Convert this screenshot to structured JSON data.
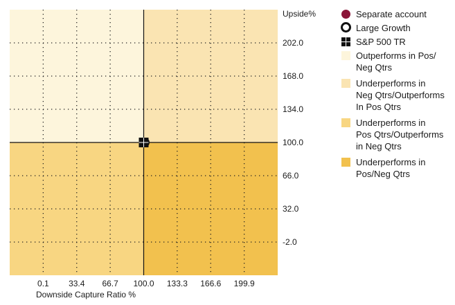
{
  "chart_data": {
    "type": "scatter",
    "title": "",
    "xlabel": "Downside Capture Ratio %",
    "ylabel": "Upside%",
    "x_ticks": [
      "0.1",
      "33.4",
      "66.7",
      "100.0",
      "133.3",
      "166.6",
      "199.9"
    ],
    "y_ticks": [
      "202.0",
      "168.0",
      "134.0",
      "100.0",
      "66.0",
      "32.0",
      "-2.0"
    ],
    "xlim": [
      -33.2,
      233.2
    ],
    "ylim": [
      -36,
      236
    ],
    "grid": true,
    "legend_position": "right",
    "reference_lines": {
      "x": 100.0,
      "y": 100.0
    },
    "quadrants": [
      {
        "name": "Outperforms in Pos/\nNeg Qtrs",
        "region": "top-left",
        "color": "#fdf5dc"
      },
      {
        "name": "Underperforms in\nNeg Qtrs/Outperforms\nIn Pos Qtrs",
        "region": "top-right",
        "color": "#fae4b2"
      },
      {
        "name": "Underperforms in\nPos Qtrs/Outperforms\nin Neg Qtrs",
        "region": "bottom-left",
        "color": "#f8d682"
      },
      {
        "name": "Underperforms in\nPos/Neg Qtrs",
        "region": "bottom-right",
        "color": "#f2c14e"
      }
    ],
    "series": [
      {
        "name": "Separate account",
        "marker": "dot",
        "color": "#8a1538",
        "points": []
      },
      {
        "name": "Large Growth",
        "marker": "ring",
        "color": "#111111",
        "points": [
          {
            "x": 101.0,
            "y": 100.0
          }
        ]
      },
      {
        "name": "S&P 500 TR",
        "marker": "square",
        "color": "#111111",
        "points": [
          {
            "x": 100.0,
            "y": 100.0
          }
        ]
      }
    ]
  }
}
